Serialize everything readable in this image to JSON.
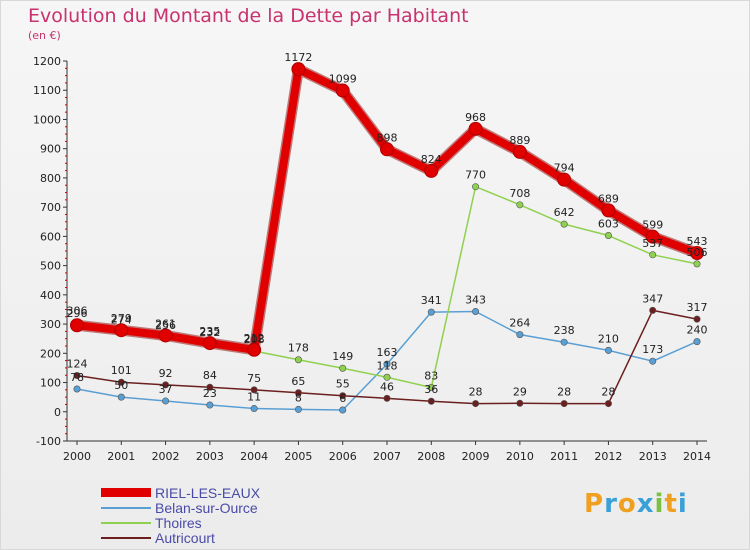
{
  "header": {
    "title": "Evolution du Montant de la Dette par Habitant",
    "unit": "(en €)"
  },
  "logo": {
    "letters": [
      "P",
      "r",
      "o",
      "x",
      "i",
      "t",
      "i"
    ],
    "colors": [
      "#f0a020",
      "#3aa0d8",
      "#f0a020",
      "#3aa0d8",
      "#7ac143",
      "#f0a020",
      "#3aa0d8"
    ]
  },
  "chart_data": {
    "type": "line",
    "x": [
      "2000",
      "2001",
      "2002",
      "2003",
      "2004",
      "2005",
      "2006",
      "2007",
      "2008",
      "2009",
      "2010",
      "2011",
      "2012",
      "2013",
      "2014"
    ],
    "ylim": [
      -100,
      1200
    ],
    "yticks": [
      "-100",
      "0",
      "100",
      "200",
      "300",
      "400",
      "500",
      "600",
      "700",
      "800",
      "900",
      "1000",
      "1100",
      "1200"
    ],
    "grid": false,
    "legend_position": "bottom-left",
    "series": [
      {
        "name": "RIEL-LES-EAUX",
        "color": "#e00000",
        "values": [
          296,
          279,
          261,
          235,
          212,
          1172,
          1099,
          898,
          824,
          968,
          889,
          794,
          689,
          599,
          543
        ],
        "labels": [
          "296",
          "279",
          "261",
          "235",
          "212",
          "1172",
          "1099",
          "898",
          "824",
          "968",
          "889",
          "794",
          "689",
          "599",
          "543"
        ]
      },
      {
        "name": "Belan-sur-Ource",
        "color": "#5a9fd4",
        "values": [
          78,
          50,
          37,
          23,
          11,
          8,
          6,
          163,
          341,
          343,
          264,
          238,
          210,
          173,
          240
        ],
        "labels": [
          "78",
          "50",
          "37",
          "23",
          "11",
          "8",
          "6",
          "163",
          "341",
          "343",
          "264",
          "238",
          "210",
          "173",
          "240"
        ]
      },
      {
        "name": "Thoires",
        "color": "#8fd14f",
        "values": [
          306,
          274,
          256,
          232,
          208,
          178,
          149,
          118,
          83,
          770,
          708,
          642,
          603,
          537,
          506
        ],
        "labels": [
          "306",
          "274",
          "256",
          "232",
          "208",
          "178",
          "149",
          "118",
          "83",
          "770",
          "708",
          "642",
          "603",
          "537",
          "506"
        ]
      },
      {
        "name": "Autricourt",
        "color": "#6b1f1f",
        "values": [
          124,
          101,
          92,
          84,
          75,
          65,
          55,
          46,
          36,
          28,
          29,
          28,
          28,
          347,
          317
        ],
        "labels": [
          "124",
          "101",
          "92",
          "84",
          "75",
          "65",
          "55",
          "46",
          "36",
          "28",
          "29",
          "28",
          "28",
          "347",
          "317"
        ]
      }
    ]
  }
}
